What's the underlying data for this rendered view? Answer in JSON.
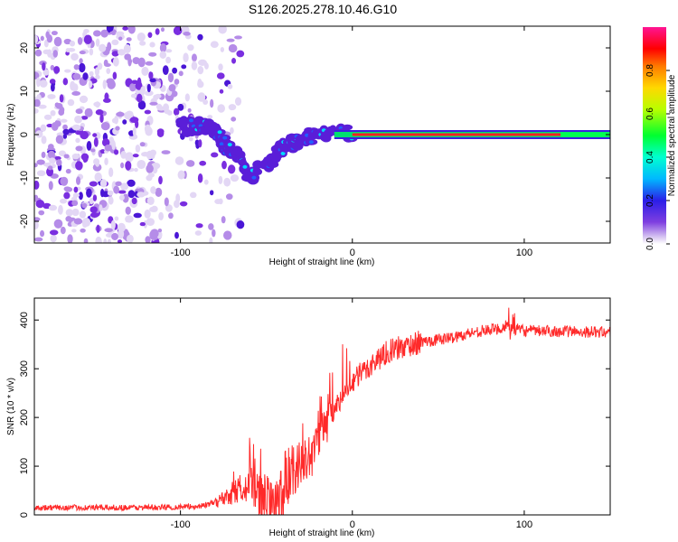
{
  "title": "S126.2025.278.10.46.G10",
  "chart_data": [
    {
      "type": "heatmap",
      "name": "spectrogram",
      "xlabel": "Height of straight line (km)",
      "ylabel": "Frequency (Hz)",
      "xlim": [
        -185,
        150
      ],
      "ylim": [
        -25,
        25
      ],
      "xticks": [
        -100,
        0,
        100
      ],
      "yticks": [
        -20,
        -10,
        0,
        10,
        20
      ],
      "colorbar": {
        "label": "Normalized spectral amplitude",
        "range": [
          0,
          1
        ],
        "ticks": [
          "0.0",
          "0.2",
          "0.4",
          "0.6",
          "0.8"
        ]
      },
      "features": {
        "noise_region_x": [
          -185,
          -95
        ],
        "descending_branch": [
          [
            -100,
            2
          ],
          [
            -90,
            2
          ],
          [
            -80,
            1
          ],
          [
            -75,
            -2
          ],
          [
            -70,
            -4
          ],
          [
            -65,
            -6
          ],
          [
            -60,
            -10
          ],
          [
            -55,
            -8
          ]
        ],
        "ascending_branch": [
          [
            -50,
            -7
          ],
          [
            -45,
            -5
          ],
          [
            -40,
            -3
          ],
          [
            -35,
            -2
          ],
          [
            -30,
            -1
          ],
          [
            -20,
            0
          ],
          [
            -10,
            1
          ],
          [
            0,
            0
          ]
        ],
        "steady_line_x": [
          0,
          150
        ],
        "steady_line_freq": 0
      }
    },
    {
      "type": "line",
      "name": "snr",
      "xlabel": "Height of straight line (km)",
      "ylabel": "SNR (10 * v/v)",
      "xlim": [
        -185,
        150
      ],
      "ylim": [
        0,
        445
      ],
      "xticks": [
        -100,
        0,
        100
      ],
      "yticks": [
        0,
        100,
        200,
        300,
        400
      ],
      "color": "#ff2a2a",
      "x": [
        -185,
        -120,
        -90,
        -80,
        -70,
        -60,
        -55,
        -50,
        -45,
        -40,
        -35,
        -30,
        -25,
        -20,
        -15,
        -10,
        -5,
        0,
        5,
        10,
        15,
        20,
        25,
        30,
        40,
        50,
        60,
        70,
        80,
        90,
        100,
        120,
        150
      ],
      "values": [
        15,
        15,
        17,
        25,
        45,
        65,
        45,
        30,
        10,
        60,
        95,
        105,
        125,
        155,
        195,
        220,
        245,
        270,
        290,
        305,
        320,
        335,
        340,
        345,
        355,
        360,
        365,
        375,
        380,
        385,
        378,
        377,
        375
      ]
    }
  ]
}
